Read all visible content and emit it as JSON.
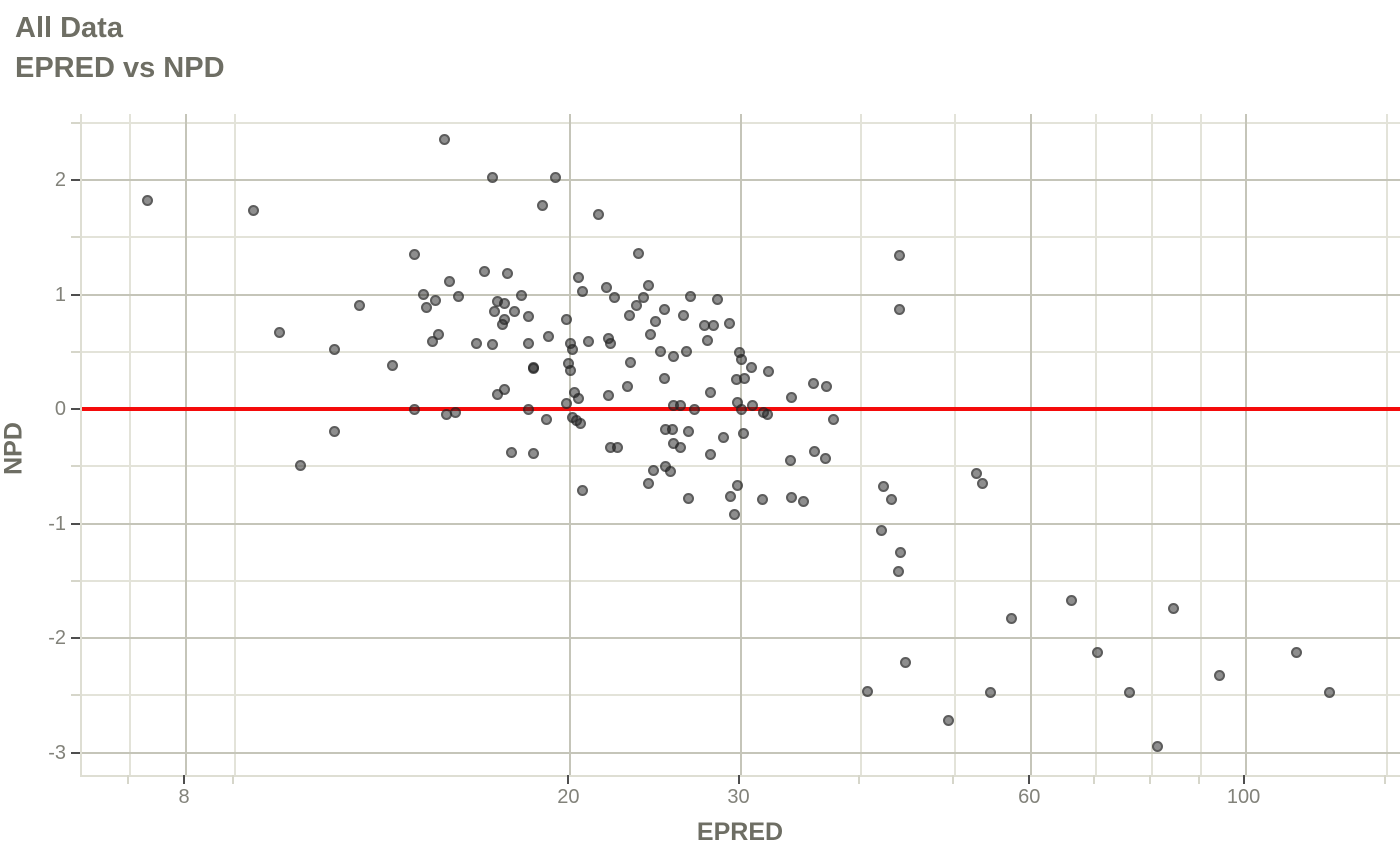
{
  "header": {
    "title": "All Data",
    "subtitle": "EPRED vs NPD"
  },
  "axes": {
    "x_title": "EPRED",
    "y_title": "NPD",
    "x_major_ticks": [
      8,
      20,
      30,
      60,
      100
    ],
    "x_minor_ticks": [
      7,
      9,
      40,
      50,
      70,
      80,
      90,
      140
    ],
    "y_major_ticks": [
      2,
      1,
      0,
      -1,
      -2,
      -3
    ],
    "y_minor_ticks": [
      2.5,
      1.5,
      0.5,
      -0.5,
      -1.5,
      -2.5
    ],
    "x_scale": "log10",
    "y_scale": "linear"
  },
  "colors": {
    "title_text": "#6e6e64",
    "tick_text": "#82827a",
    "grid_major": "#c5c5b9",
    "grid_minor": "#e3e3d9",
    "reference_line": "#f40b0b",
    "point": "rgba(38,38,38,0.52)",
    "background": "#ffffff"
  },
  "chart_data": {
    "type": "scatter",
    "title": "All Data",
    "subtitle": "EPRED vs NPD",
    "xlabel": "EPRED",
    "ylabel": "NPD",
    "x_scale": "log10",
    "xlim": [
      6.2,
      145
    ],
    "ylim": [
      -3.2,
      2.57
    ],
    "grid": true,
    "reference_line_y": 0,
    "points": [
      [
        14.8,
        2.35
      ],
      [
        16.6,
        2.02
      ],
      [
        19.3,
        2.02
      ],
      [
        7.3,
        1.82
      ],
      [
        18.7,
        1.78
      ],
      [
        9.4,
        1.73
      ],
      [
        21.4,
        1.7
      ],
      [
        23.5,
        1.36
      ],
      [
        13.8,
        1.35
      ],
      [
        43.8,
        1.34
      ],
      [
        16.3,
        1.2
      ],
      [
        17.2,
        1.18
      ],
      [
        20.4,
        1.15
      ],
      [
        15.0,
        1.11
      ],
      [
        24.1,
        1.08
      ],
      [
        21.8,
        1.06
      ],
      [
        20.6,
        1.03
      ],
      [
        14.1,
        1.0
      ],
      [
        17.8,
        0.99
      ],
      [
        26.6,
        0.98
      ],
      [
        23.8,
        0.97
      ],
      [
        22.2,
        0.97
      ],
      [
        15.3,
        0.98
      ],
      [
        28.4,
        0.96
      ],
      [
        14.5,
        0.95
      ],
      [
        16.8,
        0.94
      ],
      [
        17.1,
        0.92
      ],
      [
        12.1,
        0.9
      ],
      [
        23.4,
        0.9
      ],
      [
        14.2,
        0.89
      ],
      [
        25.0,
        0.87
      ],
      [
        43.8,
        0.87
      ],
      [
        16.7,
        0.85
      ],
      [
        17.5,
        0.85
      ],
      [
        23.0,
        0.82
      ],
      [
        26.2,
        0.82
      ],
      [
        18.1,
        0.81
      ],
      [
        17.1,
        0.78
      ],
      [
        19.8,
        0.78
      ],
      [
        24.5,
        0.76
      ],
      [
        29.2,
        0.75
      ],
      [
        27.5,
        0.73
      ],
      [
        28.1,
        0.73
      ],
      [
        17.0,
        0.74
      ],
      [
        10.0,
        0.67
      ],
      [
        14.6,
        0.65
      ],
      [
        24.2,
        0.65
      ],
      [
        19.0,
        0.63
      ],
      [
        21.9,
        0.62
      ],
      [
        27.7,
        0.6
      ],
      [
        14.4,
        0.59
      ],
      [
        20.9,
        0.59
      ],
      [
        16.0,
        0.57
      ],
      [
        16.6,
        0.56
      ],
      [
        18.1,
        0.57
      ],
      [
        20.0,
        0.57
      ],
      [
        22.0,
        0.57
      ],
      [
        11.4,
        0.52
      ],
      [
        20.1,
        0.52
      ],
      [
        24.8,
        0.5
      ],
      [
        26.4,
        0.5
      ],
      [
        25.6,
        0.46
      ],
      [
        29.9,
        0.49
      ],
      [
        30.1,
        0.43
      ],
      [
        13.1,
        0.38
      ],
      [
        18.3,
        0.36
      ],
      [
        18.3,
        0.35
      ],
      [
        19.9,
        0.4
      ],
      [
        20.0,
        0.34
      ],
      [
        23.1,
        0.41
      ],
      [
        30.8,
        0.36
      ],
      [
        32.1,
        0.33
      ],
      [
        29.7,
        0.26
      ],
      [
        30.3,
        0.27
      ],
      [
        25.0,
        0.27
      ],
      [
        22.9,
        0.2
      ],
      [
        35.7,
        0.22
      ],
      [
        36.8,
        0.2
      ],
      [
        16.8,
        0.13
      ],
      [
        17.1,
        0.17
      ],
      [
        20.2,
        0.14
      ],
      [
        20.4,
        0.09
      ],
      [
        21.9,
        0.12
      ],
      [
        27.9,
        0.14
      ],
      [
        33.9,
        0.1
      ],
      [
        13.8,
        0.0
      ],
      [
        18.1,
        0.0
      ],
      [
        19.8,
        0.05
      ],
      [
        25.6,
        0.03
      ],
      [
        26.0,
        0.03
      ],
      [
        29.8,
        0.06
      ],
      [
        30.1,
        0.0
      ],
      [
        30.9,
        0.03
      ],
      [
        26.9,
        0.0
      ],
      [
        14.9,
        -0.05
      ],
      [
        15.2,
        -0.03
      ],
      [
        31.7,
        -0.03
      ],
      [
        32.0,
        -0.05
      ],
      [
        18.9,
        -0.09
      ],
      [
        37.4,
        -0.09
      ],
      [
        20.1,
        -0.07
      ],
      [
        20.3,
        -0.1
      ],
      [
        20.5,
        -0.13
      ],
      [
        11.4,
        -0.2
      ],
      [
        25.1,
        -0.18
      ],
      [
        25.5,
        -0.18
      ],
      [
        26.5,
        -0.2
      ],
      [
        30.2,
        -0.21
      ],
      [
        28.8,
        -0.25
      ],
      [
        25.6,
        -0.3
      ],
      [
        26.0,
        -0.34
      ],
      [
        22.0,
        -0.34
      ],
      [
        22.4,
        -0.34
      ],
      [
        17.4,
        -0.38
      ],
      [
        18.3,
        -0.39
      ],
      [
        27.9,
        -0.4
      ],
      [
        33.8,
        -0.45
      ],
      [
        35.8,
        -0.37
      ],
      [
        36.7,
        -0.43
      ],
      [
        10.5,
        -0.49
      ],
      [
        24.4,
        -0.54
      ],
      [
        25.1,
        -0.5
      ],
      [
        25.4,
        -0.55
      ],
      [
        52.7,
        -0.56
      ],
      [
        53.4,
        -0.65
      ],
      [
        20.6,
        -0.71
      ],
      [
        24.1,
        -0.65
      ],
      [
        26.5,
        -0.78
      ],
      [
        29.3,
        -0.76
      ],
      [
        29.8,
        -0.67
      ],
      [
        29.6,
        -0.92
      ],
      [
        31.6,
        -0.79
      ],
      [
        33.9,
        -0.77
      ],
      [
        34.9,
        -0.81
      ],
      [
        42.2,
        -0.68
      ],
      [
        43.0,
        -0.79
      ],
      [
        42.0,
        -1.06
      ],
      [
        43.9,
        -1.25
      ],
      [
        43.7,
        -1.42
      ],
      [
        57.2,
        -1.83
      ],
      [
        66.0,
        -1.67
      ],
      [
        70.3,
        -2.13
      ],
      [
        44.5,
        -2.21
      ],
      [
        40.6,
        -2.47
      ],
      [
        49.2,
        -2.72
      ],
      [
        54.4,
        -2.48
      ],
      [
        75.9,
        -2.48
      ],
      [
        84.3,
        -1.74
      ],
      [
        81.0,
        -2.95
      ],
      [
        94.0,
        -2.33
      ],
      [
        113,
        -2.13
      ],
      [
        122,
        -2.48
      ]
    ]
  }
}
